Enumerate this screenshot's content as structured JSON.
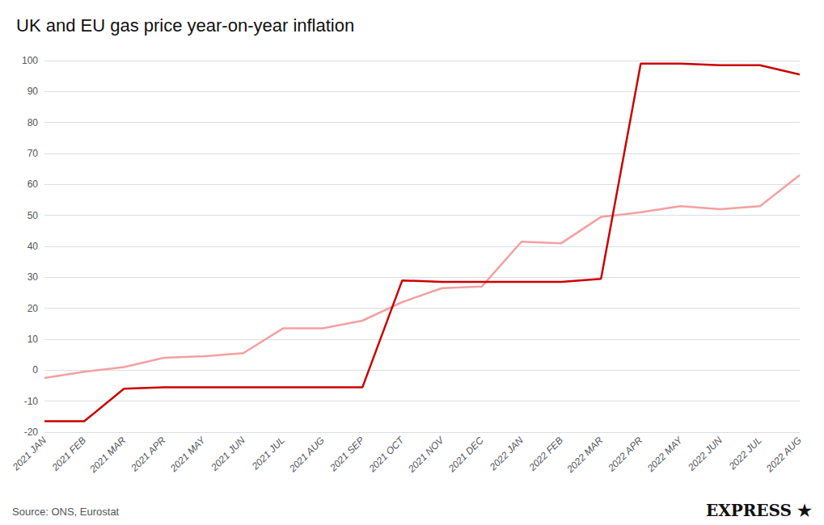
{
  "chart_data": {
    "type": "line",
    "title": "UK and EU gas price year-on-year inflation",
    "categories": [
      "2021 JAN",
      "2021 FEB",
      "2021 MAR",
      "2021 APR",
      "2021 MAY",
      "2021 JUN",
      "2021 JUL",
      "2021 AUG",
      "2021 SEP",
      "2021 OCT",
      "2021 NOV",
      "2021 DEC",
      "2022 JAN",
      "2022 FEB",
      "2022 MAR",
      "2022 APR",
      "2022 MAY",
      "2022 JUN",
      "2022 JUL",
      "2022 AUG"
    ],
    "series": [
      {
        "color": "#f4a0a0",
        "values": [
          -2.5,
          -0.5,
          1.0,
          4.0,
          4.5,
          5.5,
          13.5,
          13.5,
          16.0,
          22.0,
          26.5,
          27.0,
          41.5,
          41.0,
          49.5,
          51.0,
          53.0,
          52.0,
          53.0,
          63.0
        ]
      },
      {
        "color": "#cc0000",
        "values": [
          -16.5,
          -16.5,
          -6.0,
          -5.5,
          -5.5,
          -5.5,
          -5.5,
          -5.5,
          -5.5,
          29.0,
          28.5,
          28.5,
          28.5,
          28.5,
          29.5,
          99.0,
          99.0,
          98.5,
          98.5,
          95.5
        ]
      }
    ],
    "ylim": [
      -20,
      100
    ],
    "yticks": [
      -20,
      -10,
      0,
      10,
      20,
      30,
      40,
      50,
      60,
      70,
      80,
      90,
      100
    ],
    "grid": true,
    "annotations": [
      "Source: ONS, Eurostat",
      "EXPRESS",
      "★"
    ]
  }
}
